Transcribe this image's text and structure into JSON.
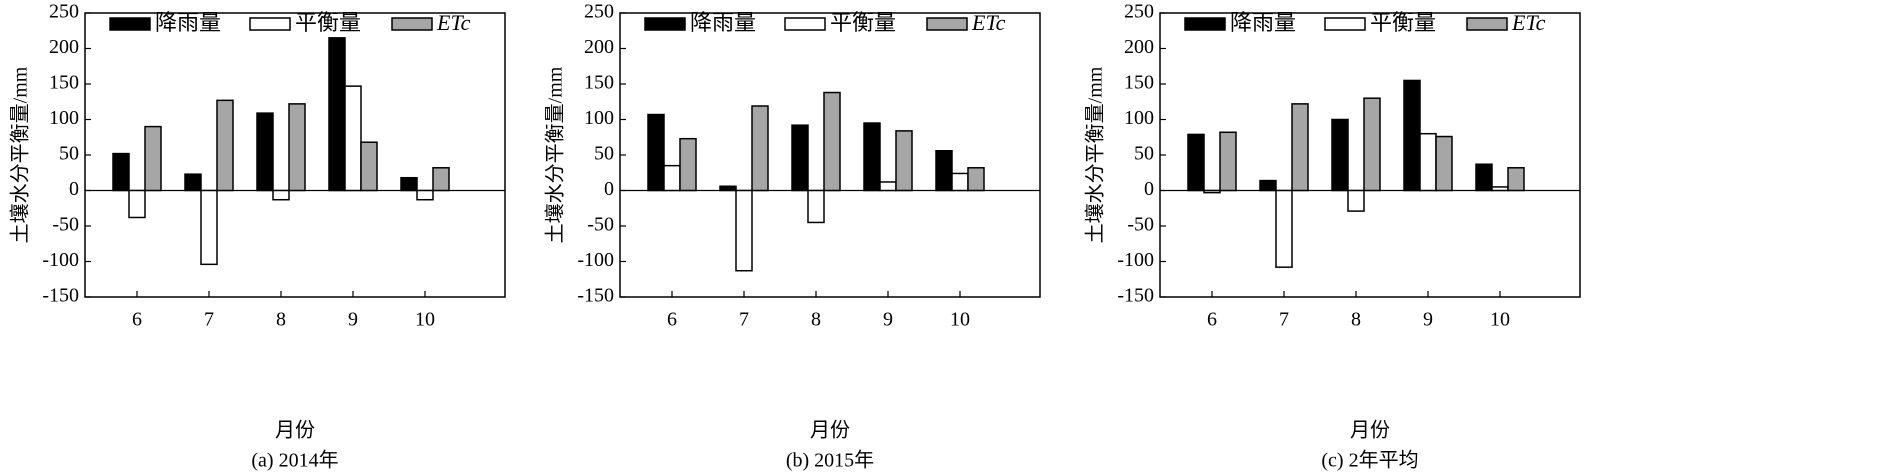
{
  "chart_data": [
    {
      "type": "bar",
      "caption": "(a) 2014年",
      "xlabel": "月份",
      "ylabel": "土壤水分平衡量/mm",
      "categories": [
        "6",
        "7",
        "8",
        "9",
        "10"
      ],
      "series": [
        {
          "name": "降雨量",
          "color": "#000000",
          "values": [
            52,
            23,
            109,
            215,
            18
          ]
        },
        {
          "name": "平衡量",
          "color": "#ffffff",
          "values": [
            -38,
            -104,
            -13,
            147,
            -13
          ]
        },
        {
          "name": "ETc",
          "color": "#a6a6a6",
          "values": [
            90,
            127,
            122,
            68,
            32
          ]
        }
      ],
      "ylim": [
        -150,
        250
      ],
      "yticks": [
        -150,
        -100,
        -50,
        0,
        50,
        100,
        150,
        200,
        250
      ]
    },
    {
      "type": "bar",
      "caption": "(b) 2015年",
      "xlabel": "月份",
      "ylabel": "土壤水分平衡量/mm",
      "categories": [
        "6",
        "7",
        "8",
        "9",
        "10"
      ],
      "series": [
        {
          "name": "降雨量",
          "color": "#000000",
          "values": [
            107,
            6,
            92,
            95,
            56
          ]
        },
        {
          "name": "平衡量",
          "color": "#ffffff",
          "values": [
            35,
            -113,
            -45,
            12,
            24
          ]
        },
        {
          "name": "ETc",
          "color": "#a6a6a6",
          "values": [
            73,
            119,
            138,
            84,
            32
          ]
        }
      ],
      "ylim": [
        -150,
        250
      ],
      "yticks": [
        -150,
        -100,
        -50,
        0,
        50,
        100,
        150,
        200,
        250
      ]
    },
    {
      "type": "bar",
      "caption": "(c) 2年平均",
      "xlabel": "月份",
      "ylabel": "土壤水分平衡量/mm",
      "categories": [
        "6",
        "7",
        "8",
        "9",
        "10"
      ],
      "series": [
        {
          "name": "降雨量",
          "color": "#000000",
          "values": [
            79,
            14,
            100,
            155,
            37
          ]
        },
        {
          "name": "平衡量",
          "color": "#ffffff",
          "values": [
            -3,
            -108,
            -29,
            80,
            5
          ]
        },
        {
          "name": "ETc",
          "color": "#a6a6a6",
          "values": [
            82,
            122,
            130,
            76,
            32
          ]
        }
      ],
      "ylim": [
        -150,
        250
      ],
      "yticks": [
        -150,
        -100,
        -50,
        0,
        50,
        100,
        150,
        200,
        250
      ]
    }
  ]
}
